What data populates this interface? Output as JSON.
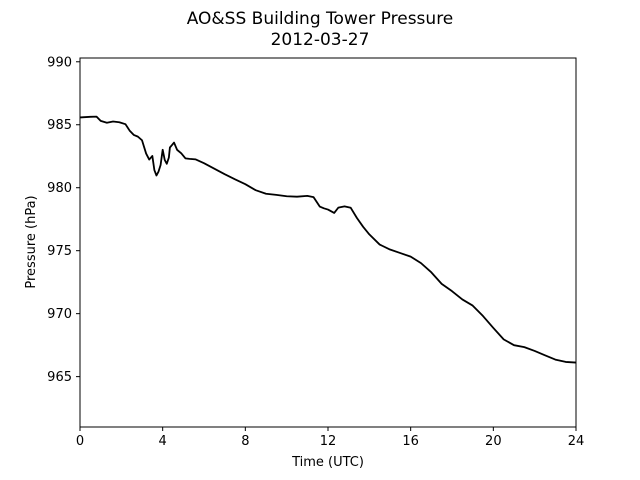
{
  "chart_data": {
    "type": "line",
    "title": "AO&SS Building Tower Pressure",
    "subtitle": "2012-03-27",
    "xlabel": "Time (UTC)",
    "ylabel": "Pressure (hPa)",
    "xlim": [
      0,
      24
    ],
    "ylim": [
      961,
      990.3
    ],
    "xticks": [
      0,
      4,
      8,
      12,
      16,
      20,
      24
    ],
    "yticks": [
      965,
      970,
      975,
      980,
      985,
      990
    ],
    "grid": false,
    "legend": "none",
    "line_color": "#000000",
    "series": [
      {
        "x": [
          0,
          0.5,
          0.8,
          1.0,
          1.3,
          1.6,
          1.9,
          2.2,
          2.4,
          2.6,
          2.8,
          3.0,
          3.2,
          3.35,
          3.5,
          3.6,
          3.7,
          3.8,
          3.9,
          4.0,
          4.1,
          4.2,
          4.3,
          4.35,
          4.45,
          4.55,
          4.7,
          4.9,
          5.1,
          5.3,
          5.6,
          6.0,
          6.5,
          7.0,
          7.5,
          8.0,
          8.5,
          9.0,
          9.5,
          10.0,
          10.5,
          11.0,
          11.3,
          11.6,
          11.8,
          12.0,
          12.3,
          12.5,
          12.8,
          13.1,
          13.4,
          13.7,
          14.0,
          14.5,
          15.0,
          15.5,
          16.0,
          16.5,
          17.0,
          17.5,
          18.0,
          18.5,
          19.0,
          19.5,
          20.0,
          20.5,
          21.0,
          21.5,
          22.0,
          22.5,
          23.0,
          23.5,
          24.0
        ],
        "values": [
          985.5,
          985.5,
          985.6,
          985.4,
          985.3,
          985.3,
          985.1,
          984.9,
          984.5,
          984.3,
          984.2,
          983.8,
          982.6,
          982.1,
          982.5,
          981.5,
          981.1,
          981.3,
          981.7,
          982.9,
          982.2,
          982.0,
          982.5,
          983.2,
          983.3,
          983.5,
          983.0,
          982.8,
          982.4,
          982.3,
          982.2,
          981.9,
          981.5,
          981.1,
          980.7,
          980.3,
          979.8,
          979.5,
          979.4,
          979.3,
          979.3,
          979.4,
          979.3,
          978.5,
          978.3,
          978.2,
          978.0,
          978.5,
          978.6,
          978.4,
          977.5,
          976.8,
          976.3,
          975.6,
          975.2,
          974.8,
          974.4,
          973.9,
          973.3,
          972.5,
          971.9,
          971.1,
          970.5,
          969.7,
          968.9,
          968.1,
          967.6,
          967.3,
          966.9,
          966.6,
          966.4,
          966.3,
          966.2
        ]
      }
    ]
  }
}
